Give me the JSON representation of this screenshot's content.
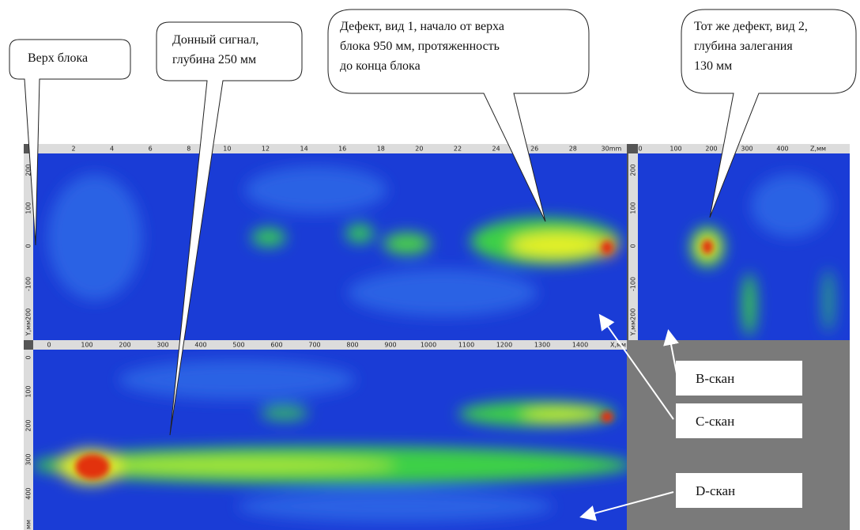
{
  "callouts": [
    {
      "lines": [
        "Верх блока"
      ]
    },
    {
      "lines": [
        "Донный сигнал,",
        "глубина 250 мм"
      ]
    },
    {
      "lines": [
        "Дефект, вид 1, начало от верха",
        "блока 950 мм, протяженность",
        "до конца блока"
      ]
    },
    {
      "lines": [
        "Тот же дефект, вид 2,",
        "глубина залегания",
        "130 мм"
      ]
    }
  ],
  "labels": [
    "B-скан",
    "C-скан",
    "D-скан"
  ],
  "rulers": {
    "b_top": [
      "2",
      "4",
      "6",
      "8",
      "10",
      "12",
      "14",
      "16",
      "18",
      "20",
      "22",
      "24",
      "26",
      "28",
      "30mm"
    ],
    "b_left": [
      "200",
      "100",
      "0",
      "-100",
      "Y,мм200"
    ],
    "side_top": [
      "0",
      "100",
      "200",
      "300",
      "400",
      "Z,мм"
    ],
    "side_left": [
      "200",
      "100",
      "0",
      "-100",
      "Y,мм200"
    ],
    "d_top": [
      "0",
      "100",
      "200",
      "300",
      "400",
      "500",
      "600",
      "700",
      "800",
      "900",
      "1000",
      "1100",
      "1200",
      "1300",
      "1400",
      "X,мм"
    ],
    "d_left": [
      "0",
      "100",
      "200",
      "300",
      "400",
      "Z,мм"
    ]
  }
}
